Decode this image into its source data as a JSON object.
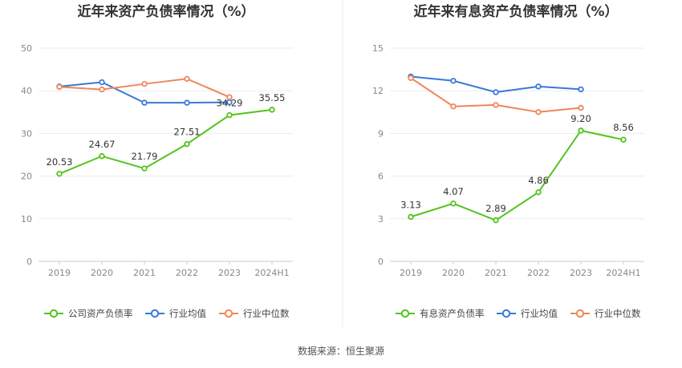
{
  "chart_data": [
    {
      "type": "line",
      "title": "近年来资产负债率情况（%）",
      "categories": [
        "2019",
        "2020",
        "2021",
        "2022",
        "2023",
        "2024H1"
      ],
      "ylim": [
        0,
        50
      ],
      "yticks": [
        0,
        10,
        20,
        30,
        40,
        50
      ],
      "grid": true,
      "legend_position": "bottom",
      "series": [
        {
          "name": "公司资产负债率",
          "color": "#52c41a",
          "values": [
            20.53,
            24.67,
            21.79,
            27.51,
            34.29,
            35.55
          ],
          "labels": [
            "20.53",
            "24.67",
            "21.79",
            "27.51",
            "34.29",
            "35.55"
          ]
        },
        {
          "name": "行业均值",
          "color": "#3a78d8",
          "values": [
            41.0,
            42.0,
            37.2,
            37.2,
            37.3,
            null
          ]
        },
        {
          "name": "行业中位数",
          "color": "#f0865a",
          "values": [
            40.9,
            40.3,
            41.6,
            42.8,
            38.5,
            null
          ]
        }
      ]
    },
    {
      "type": "line",
      "title": "近年来有息资产负债率情况（%）",
      "categories": [
        "2019",
        "2020",
        "2021",
        "2022",
        "2023",
        "2024H1"
      ],
      "ylim": [
        0,
        15
      ],
      "yticks": [
        0,
        3,
        6,
        9,
        12,
        15
      ],
      "grid": true,
      "legend_position": "bottom",
      "series": [
        {
          "name": "有息资产负债率",
          "color": "#52c41a",
          "values": [
            3.13,
            4.07,
            2.89,
            4.86,
            9.2,
            8.56
          ],
          "labels": [
            "3.13",
            "4.07",
            "2.89",
            "4.86",
            "9.20",
            "8.56"
          ]
        },
        {
          "name": "行业均值",
          "color": "#3a78d8",
          "values": [
            13.0,
            12.7,
            11.9,
            12.3,
            12.1,
            null
          ]
        },
        {
          "name": "行业中位数",
          "color": "#f0865a",
          "values": [
            12.9,
            10.9,
            11.0,
            10.5,
            10.8,
            null
          ]
        }
      ]
    }
  ],
  "footer": {
    "source": "数据来源：恒生聚源"
  }
}
